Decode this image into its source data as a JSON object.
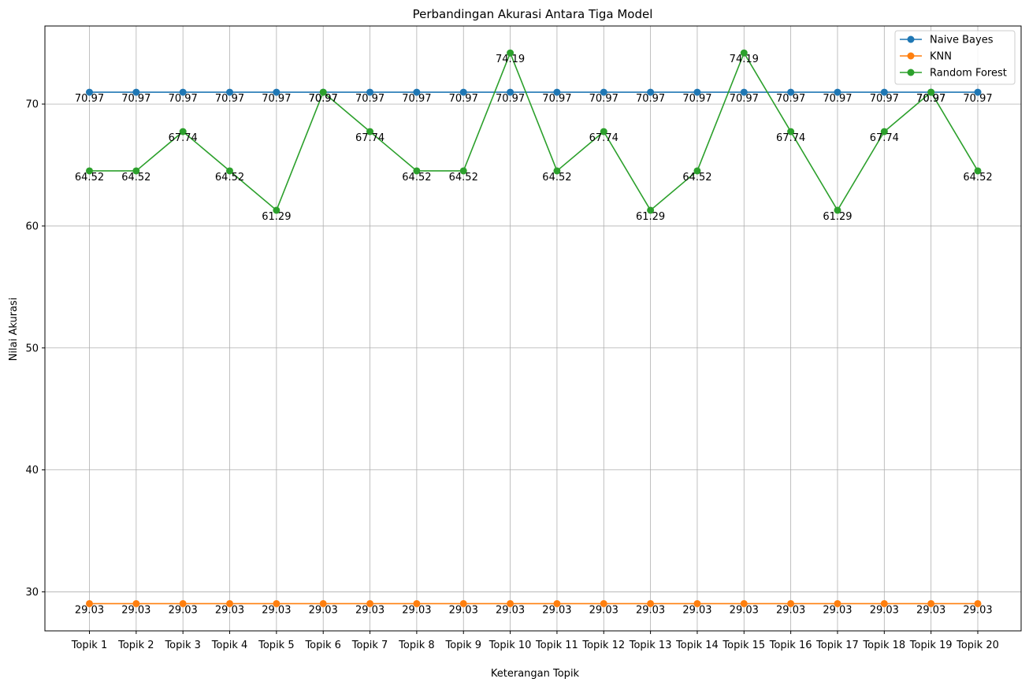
{
  "chart_data": {
    "type": "line",
    "title": "Perbandingan Akurasi Antara Tiga Model",
    "xlabel": "Keterangan Topik",
    "ylabel": "Nilai Akurasi",
    "categories": [
      "Topik 1",
      "Topik 2",
      "Topik 3",
      "Topik 4",
      "Topik 5",
      "Topik 6",
      "Topik 7",
      "Topik 8",
      "Topik 9",
      "Topik 10",
      "Topik 11",
      "Topik 12",
      "Topik 13",
      "Topik 14",
      "Topik 15",
      "Topik 16",
      "Topik 17",
      "Topik 18",
      "Topik 19",
      "Topik 20"
    ],
    "ylim": [
      26.8,
      76.4
    ],
    "yticks": [
      30,
      40,
      50,
      60,
      70
    ],
    "grid": true,
    "legend_position": "top-right",
    "series": [
      {
        "name": "Naive Bayes",
        "color": "#1f77b4",
        "values": [
          70.97,
          70.97,
          70.97,
          70.97,
          70.97,
          70.97,
          70.97,
          70.97,
          70.97,
          70.97,
          70.97,
          70.97,
          70.97,
          70.97,
          70.97,
          70.97,
          70.97,
          70.97,
          70.97,
          70.97
        ]
      },
      {
        "name": "KNN",
        "color": "#ff7f0e",
        "values": [
          29.03,
          29.03,
          29.03,
          29.03,
          29.03,
          29.03,
          29.03,
          29.03,
          29.03,
          29.03,
          29.03,
          29.03,
          29.03,
          29.03,
          29.03,
          29.03,
          29.03,
          29.03,
          29.03,
          29.03
        ]
      },
      {
        "name": "Random Forest",
        "color": "#2ca02c",
        "values": [
          64.52,
          64.52,
          67.74,
          64.52,
          61.29,
          70.97,
          67.74,
          64.52,
          64.52,
          74.19,
          64.52,
          67.74,
          61.29,
          64.52,
          74.19,
          67.74,
          61.29,
          67.74,
          70.97,
          64.52
        ]
      }
    ]
  }
}
